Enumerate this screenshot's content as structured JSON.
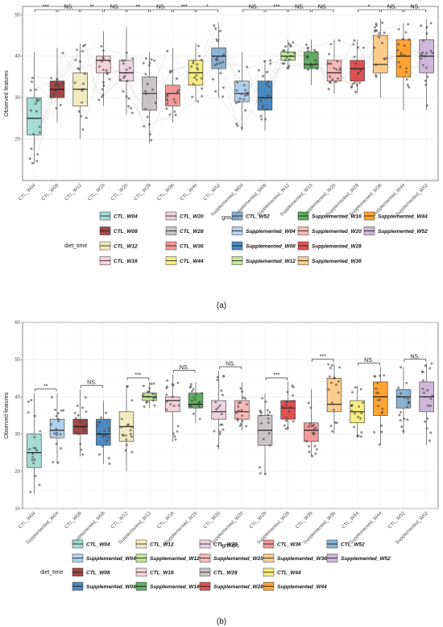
{
  "chart_data": [
    {
      "type": "box",
      "panel_label": "(a)",
      "xlabel": "groups",
      "ylabel": "Observed features",
      "ylim": [
        10,
        52
      ],
      "yticks": [
        20,
        30,
        40,
        50
      ],
      "grid": true,
      "categories": [
        "CTL_W04",
        "CTL_W08",
        "CTL_W12",
        "CTL_W16",
        "CTL_W20",
        "CTL_W28",
        "CTL_W36",
        "CTL_W44",
        "CTL_W52",
        "Supplemented_W04",
        "Supplemented_W08",
        "Supplemented_W12",
        "Supplemented_W16",
        "Supplemented_W20",
        "Supplemented_W28",
        "Supplemented_W36",
        "Supplemented_W44",
        "Supplemented_W52"
      ],
      "boxes": [
        {
          "q1": 21,
          "median": 25,
          "q3": 30,
          "whisker_low": 14,
          "whisker_high": 41,
          "color": "#8DD3C7"
        },
        {
          "q1": 30,
          "median": 32,
          "q3": 34,
          "whisker_low": 24,
          "whisker_high": 42,
          "color": "#8B1A1A"
        },
        {
          "q1": 28,
          "median": 32,
          "q3": 36,
          "whisker_low": 20,
          "whisker_high": 43,
          "color": "#F0E6B0"
        },
        {
          "q1": 36,
          "median": 39,
          "q3": 40,
          "whisker_low": 28,
          "whisker_high": 46,
          "color": "#F4C8D0"
        },
        {
          "q1": 34,
          "median": 36,
          "q3": 39,
          "whisker_low": 26,
          "whisker_high": 47,
          "color": "#E8C8D8"
        },
        {
          "q1": 27,
          "median": 31,
          "q3": 35,
          "whisker_low": 19,
          "whisker_high": 41,
          "color": "#BDB6B8"
        },
        {
          "q1": 28,
          "median": 31,
          "q3": 33,
          "whisker_low": 24,
          "whisker_high": 42,
          "color": "#F08080"
        },
        {
          "q1": 33,
          "median": 36,
          "q3": 39,
          "whisker_low": 29,
          "whisker_high": 43,
          "color": "#F5E860"
        },
        {
          "q1": 37,
          "median": 40,
          "q3": 42,
          "whisker_low": 30,
          "whisker_high": 48,
          "color": "#6F9FC8"
        },
        {
          "q1": 29,
          "median": 31,
          "q3": 34,
          "whisker_low": 22,
          "whisker_high": 41,
          "color": "#9DC4E8"
        },
        {
          "q1": 27,
          "median": 30,
          "q3": 34,
          "whisker_low": 22,
          "whisker_high": 39,
          "color": "#1F6DB0"
        },
        {
          "q1": 39,
          "median": 40,
          "q3": 41,
          "whisker_low": 37,
          "whisker_high": 44,
          "color": "#B4E080"
        },
        {
          "q1": 37,
          "median": 38,
          "q3": 41,
          "whisker_low": 33,
          "whisker_high": 44,
          "color": "#3A9A3A"
        },
        {
          "q1": 34,
          "median": 36,
          "q3": 39,
          "whisker_low": 31,
          "whisker_high": 44,
          "color": "#F5A8A8"
        },
        {
          "q1": 34,
          "median": 37,
          "q3": 39,
          "whisker_low": 31,
          "whisker_high": 44,
          "color": "#D62728"
        },
        {
          "q1": 36,
          "median": 38,
          "q3": 45,
          "whisker_low": 30,
          "whisker_high": 49,
          "color": "#FDBF6F"
        },
        {
          "q1": 35,
          "median": 40,
          "q3": 44,
          "whisker_low": 27,
          "whisker_high": 48,
          "color": "#FF8C00"
        },
        {
          "q1": 36,
          "median": 40,
          "q3": 44,
          "whisker_low": 27,
          "whisker_high": 49,
          "color": "#C2A5CF"
        }
      ],
      "comparisons": [
        {
          "from": 0,
          "to": 1,
          "label": "***"
        },
        {
          "from": 1,
          "to": 2,
          "label": "NS."
        },
        {
          "from": 2,
          "to": 3,
          "label": "**"
        },
        {
          "from": 3,
          "to": 4,
          "label": "NS."
        },
        {
          "from": 4,
          "to": 5,
          "label": "**"
        },
        {
          "from": 5,
          "to": 6,
          "label": "NS."
        },
        {
          "from": 6,
          "to": 7,
          "label": "***"
        },
        {
          "from": 7,
          "to": 8,
          "label": "*"
        },
        {
          "from": 9,
          "to": 10,
          "label": "NS."
        },
        {
          "from": 10,
          "to": 11,
          "label": "***"
        },
        {
          "from": 11,
          "to": 12,
          "label": "NS."
        },
        {
          "from": 12,
          "to": 13,
          "label": "NS."
        },
        {
          "from": 14,
          "to": 15,
          "label": "*"
        },
        {
          "from": 15,
          "to": 16,
          "label": "NS."
        },
        {
          "from": 16,
          "to": 17,
          "label": "NS."
        }
      ],
      "legend": {
        "title": "diet_time",
        "placement": "bottom",
        "ncol": 5,
        "entries": [
          {
            "label": "CTL_W04",
            "color": "#8DD3C7"
          },
          {
            "label": "CTL_W20",
            "color": "#E8C8D8"
          },
          {
            "label": "CTL_W52",
            "color": "#6F9FC8"
          },
          {
            "label": "Supplemented_W16",
            "color": "#3A9A3A"
          },
          {
            "label": "Supplemented_W44",
            "color": "#FF8C00"
          },
          {
            "label": "CTL_W08",
            "color": "#8B1A1A"
          },
          {
            "label": "CTL_W28",
            "color": "#BDB6B8"
          },
          {
            "label": "Supplemented_W04",
            "color": "#9DC4E8"
          },
          {
            "label": "Supplemented_W20",
            "color": "#F5A8A8"
          },
          {
            "label": "Supplemented_W52",
            "color": "#C2A5CF"
          },
          {
            "label": "CTL_W12",
            "color": "#F0E6B0"
          },
          {
            "label": "CTL_W36",
            "color": "#F08080"
          },
          {
            "label": "Supplemented_W08",
            "color": "#1F6DB0"
          },
          {
            "label": "Supplemented_W28",
            "color": "#D62728"
          },
          {
            "label": "",
            "color": ""
          },
          {
            "label": "CTL_W16",
            "color": "#F4C8D0"
          },
          {
            "label": "CTL_W44",
            "color": "#F5E860"
          },
          {
            "label": "Supplemented_W12",
            "color": "#B4E080"
          },
          {
            "label": "Supplemented_W36",
            "color": "#FDBF6F"
          },
          {
            "label": "",
            "color": ""
          }
        ]
      }
    },
    {
      "type": "box",
      "panel_label": "(b)",
      "xlabel": "groups",
      "ylabel": "Observed features",
      "ylim": [
        10,
        60
      ],
      "yticks": [
        10,
        20,
        30,
        40,
        50,
        60
      ],
      "grid": true,
      "categories": [
        "CTL_W04",
        "Supplemented_W04",
        "CTL_W08",
        "Supplemented_W08",
        "CTL_W12",
        "Supplemented_W12",
        "CTL_W16",
        "Supplemented_W16",
        "CTL_W20",
        "Supplemented_W20",
        "CTL_W28",
        "Supplemented_W28",
        "CTL_W36",
        "Supplemented_W36",
        "CTL_W44",
        "Supplemented_W44",
        "CTL_W52",
        "Supplemented_W52"
      ],
      "boxes": [
        {
          "q1": 21,
          "median": 25,
          "q3": 30,
          "whisker_low": 14,
          "whisker_high": 41,
          "color": "#8DD3C7"
        },
        {
          "q1": 29,
          "median": 31,
          "q3": 34,
          "whisker_low": 22,
          "whisker_high": 41,
          "color": "#9DC4E8"
        },
        {
          "q1": 30,
          "median": 32,
          "q3": 34,
          "whisker_low": 24,
          "whisker_high": 42,
          "color": "#8B1A1A"
        },
        {
          "q1": 27,
          "median": 30,
          "q3": 34,
          "whisker_low": 22,
          "whisker_high": 39,
          "color": "#1F6DB0"
        },
        {
          "q1": 28,
          "median": 32,
          "q3": 36,
          "whisker_low": 20,
          "whisker_high": 43,
          "color": "#F0E6B0"
        },
        {
          "q1": 39,
          "median": 40,
          "q3": 41,
          "whisker_low": 37,
          "whisker_high": 44,
          "color": "#B4E080"
        },
        {
          "q1": 36,
          "median": 39,
          "q3": 40,
          "whisker_low": 28,
          "whisker_high": 46,
          "color": "#F4C8D0"
        },
        {
          "q1": 37,
          "median": 38,
          "q3": 41,
          "whisker_low": 33,
          "whisker_high": 44,
          "color": "#3A9A3A"
        },
        {
          "q1": 34,
          "median": 36,
          "q3": 39,
          "whisker_low": 26,
          "whisker_high": 47,
          "color": "#E8C8D8"
        },
        {
          "q1": 34,
          "median": 36,
          "q3": 39,
          "whisker_low": 31,
          "whisker_high": 44,
          "color": "#F5A8A8"
        },
        {
          "q1": 27,
          "median": 31,
          "q3": 35,
          "whisker_low": 19,
          "whisker_high": 41,
          "color": "#BDB6B8"
        },
        {
          "q1": 34,
          "median": 37,
          "q3": 39,
          "whisker_low": 31,
          "whisker_high": 44,
          "color": "#D62728"
        },
        {
          "q1": 28,
          "median": 31,
          "q3": 33,
          "whisker_low": 24,
          "whisker_high": 42,
          "color": "#F08080"
        },
        {
          "q1": 36,
          "median": 38,
          "q3": 45,
          "whisker_low": 30,
          "whisker_high": 49,
          "color": "#FDBF6F"
        },
        {
          "q1": 33,
          "median": 36,
          "q3": 39,
          "whisker_low": 29,
          "whisker_high": 43,
          "color": "#F5E860"
        },
        {
          "q1": 35,
          "median": 40,
          "q3": 44,
          "whisker_low": 27,
          "whisker_high": 48,
          "color": "#FF8C00"
        },
        {
          "q1": 37,
          "median": 40,
          "q3": 42,
          "whisker_low": 30,
          "whisker_high": 48,
          "color": "#6F9FC8"
        },
        {
          "q1": 36,
          "median": 40,
          "q3": 44,
          "whisker_low": 27,
          "whisker_high": 49,
          "color": "#C2A5CF"
        }
      ],
      "comparisons": [
        {
          "from": 0,
          "to": 1,
          "label": "**"
        },
        {
          "from": 2,
          "to": 3,
          "label": "NS."
        },
        {
          "from": 4,
          "to": 5,
          "label": "***"
        },
        {
          "from": 6,
          "to": 7,
          "label": "NS."
        },
        {
          "from": 8,
          "to": 9,
          "label": "NS."
        },
        {
          "from": 10,
          "to": 11,
          "label": "***"
        },
        {
          "from": 12,
          "to": 13,
          "label": "***"
        },
        {
          "from": 14,
          "to": 15,
          "label": "NS."
        },
        {
          "from": 16,
          "to": 17,
          "label": "NS."
        }
      ],
      "legend": {
        "title": "diet_time",
        "placement": "bottom",
        "ncol": 6,
        "entries": [
          {
            "label": "CTL_W04",
            "color": "#8DD3C7"
          },
          {
            "label": "CTL_W12",
            "color": "#F0E6B0"
          },
          {
            "label": "CTL_W20",
            "color": "#E8C8D8"
          },
          {
            "label": "CTL_W36",
            "color": "#F08080"
          },
          {
            "label": "CTL_W52",
            "color": "#6F9FC8"
          },
          {
            "label": "",
            "color": ""
          },
          {
            "label": "Supplemented_W04",
            "color": "#9DC4E8"
          },
          {
            "label": "Supplemented_W12",
            "color": "#B4E080"
          },
          {
            "label": "Supplemented_W20",
            "color": "#F5A8A8"
          },
          {
            "label": "Supplemented_W36",
            "color": "#FDBF6F"
          },
          {
            "label": "Supplemented_W52",
            "color": "#C2A5CF"
          },
          {
            "label": "",
            "color": ""
          },
          {
            "label": "CTL_W08",
            "color": "#8B1A1A"
          },
          {
            "label": "CTL_W16",
            "color": "#F4C8D0"
          },
          {
            "label": "CTL_W28",
            "color": "#BDB6B8"
          },
          {
            "label": "CTL_W44",
            "color": "#F5E860"
          },
          {
            "label": "",
            "color": ""
          },
          {
            "label": "",
            "color": ""
          },
          {
            "label": "Supplemented_W08",
            "color": "#1F6DB0"
          },
          {
            "label": "Supplemented_W16",
            "color": "#3A9A3A"
          },
          {
            "label": "Supplemented_W28",
            "color": "#D62728"
          },
          {
            "label": "Supplemented_W44",
            "color": "#FF8C00"
          },
          {
            "label": "",
            "color": ""
          },
          {
            "label": "",
            "color": ""
          }
        ]
      }
    }
  ]
}
